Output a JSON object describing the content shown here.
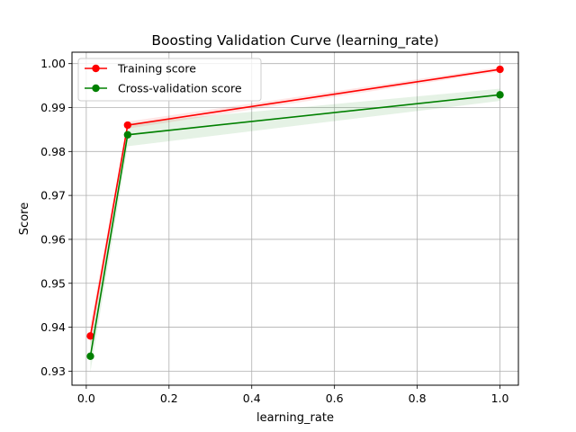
{
  "chart_data": {
    "type": "line",
    "title": "Boosting Validation Curve (learning_rate)",
    "xlabel": "learning_rate",
    "ylabel": "Score",
    "xlim": [
      -0.0345,
      1.0445
    ],
    "ylim": [
      0.9268,
      1.0026
    ],
    "xticks": [
      0.0,
      0.2,
      0.4,
      0.6,
      0.8,
      1.0
    ],
    "xtick_labels": [
      "0.0",
      "0.2",
      "0.4",
      "0.6",
      "0.8",
      "1.0"
    ],
    "yticks": [
      0.93,
      0.94,
      0.95,
      0.96,
      0.97,
      0.98,
      0.99,
      1.0
    ],
    "ytick_labels": [
      "0.93",
      "0.94",
      "0.95",
      "0.96",
      "0.97",
      "0.98",
      "0.99",
      "1.00"
    ],
    "grid": true,
    "legend_position": "top-left",
    "x": [
      0.01,
      0.1,
      1.0
    ],
    "series": [
      {
        "name": "Training score",
        "color": "#ff0000",
        "values": [
          0.938,
          0.986,
          0.9987
        ],
        "band_lower": [
          0.9355,
          0.9852,
          0.9982
        ],
        "band_upper": [
          0.9405,
          0.9868,
          0.9992
        ]
      },
      {
        "name": "Cross-validation score",
        "color": "#008000",
        "values": [
          0.9334,
          0.9838,
          0.9929
        ],
        "band_lower": [
          0.9298,
          0.9812,
          0.9915
        ],
        "band_upper": [
          0.937,
          0.9864,
          0.9943
        ]
      }
    ]
  }
}
